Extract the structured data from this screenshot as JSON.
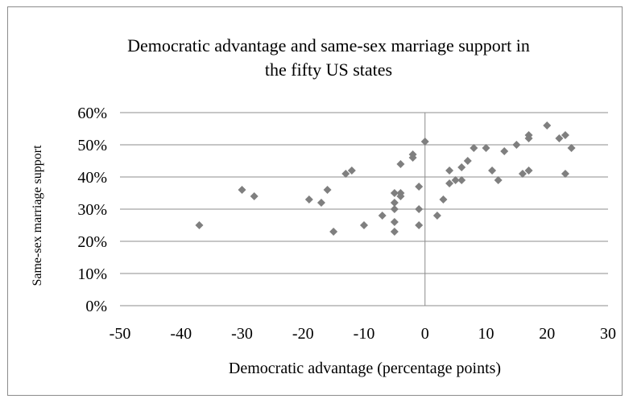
{
  "chart_data": {
    "type": "scatter",
    "title_lines": [
      "Democratic advantage and same-sex marriage support in",
      "the fifty US states"
    ],
    "xlabel": "Democratic advantage (percentage points)",
    "ylabel": "Same-sex marriage support",
    "xlim": [
      -50,
      30
    ],
    "ylim": [
      0,
      60
    ],
    "xticks": [
      "-50",
      "-40",
      "-30",
      "-20",
      "-10",
      "0",
      "10",
      "20",
      "30"
    ],
    "yticks": [
      "0%",
      "10%",
      "20%",
      "30%",
      "40%",
      "50%",
      "60%"
    ],
    "grid": "horizontal",
    "marker_color": "#7f7f7f",
    "points": [
      {
        "x": -37,
        "y": 25
      },
      {
        "x": -30,
        "y": 36
      },
      {
        "x": -28,
        "y": 34
      },
      {
        "x": -19,
        "y": 33
      },
      {
        "x": -17,
        "y": 32
      },
      {
        "x": -16,
        "y": 36
      },
      {
        "x": -15,
        "y": 23
      },
      {
        "x": -13,
        "y": 41
      },
      {
        "x": -12,
        "y": 42
      },
      {
        "x": -10,
        "y": 25
      },
      {
        "x": -7,
        "y": 28
      },
      {
        "x": -5,
        "y": 35
      },
      {
        "x": -5,
        "y": 32
      },
      {
        "x": -5,
        "y": 30
      },
      {
        "x": -5,
        "y": 26
      },
      {
        "x": -5,
        "y": 23
      },
      {
        "x": -4,
        "y": 44
      },
      {
        "x": -4,
        "y": 35
      },
      {
        "x": -4,
        "y": 34
      },
      {
        "x": -2,
        "y": 47
      },
      {
        "x": -2,
        "y": 46
      },
      {
        "x": -1,
        "y": 37
      },
      {
        "x": -1,
        "y": 30
      },
      {
        "x": -1,
        "y": 25
      },
      {
        "x": 0,
        "y": 51
      },
      {
        "x": 2,
        "y": 28
      },
      {
        "x": 3,
        "y": 33
      },
      {
        "x": 4,
        "y": 42
      },
      {
        "x": 4,
        "y": 38
      },
      {
        "x": 5,
        "y": 39
      },
      {
        "x": 6,
        "y": 43
      },
      {
        "x": 6,
        "y": 39
      },
      {
        "x": 7,
        "y": 45
      },
      {
        "x": 8,
        "y": 49
      },
      {
        "x": 10,
        "y": 49
      },
      {
        "x": 11,
        "y": 42
      },
      {
        "x": 12,
        "y": 39
      },
      {
        "x": 13,
        "y": 48
      },
      {
        "x": 15,
        "y": 50
      },
      {
        "x": 16,
        "y": 41
      },
      {
        "x": 17,
        "y": 53
      },
      {
        "x": 17,
        "y": 52
      },
      {
        "x": 17,
        "y": 42
      },
      {
        "x": 20,
        "y": 56
      },
      {
        "x": 22,
        "y": 52
      },
      {
        "x": 23,
        "y": 53
      },
      {
        "x": 23,
        "y": 41
      },
      {
        "x": 24,
        "y": 49
      }
    ]
  }
}
